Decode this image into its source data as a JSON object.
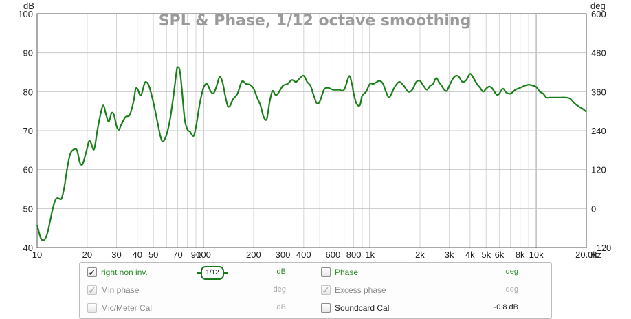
{
  "chart_data": {
    "type": "line",
    "title": "SPL & Phase, 1/12 octave smoothing",
    "x_scale": "log",
    "x_unit": "Hz",
    "xlim": [
      10,
      20000
    ],
    "x_ticks": [
      {
        "value": 10,
        "label": "10"
      },
      {
        "value": 20,
        "label": "20"
      },
      {
        "value": 30,
        "label": "30"
      },
      {
        "value": 40,
        "label": "40"
      },
      {
        "value": 50,
        "label": "50"
      },
      {
        "value": 70,
        "label": "70"
      },
      {
        "value": 90,
        "label": "90"
      },
      {
        "value": 100,
        "label": "100"
      },
      {
        "value": 200,
        "label": "200"
      },
      {
        "value": 300,
        "label": "300"
      },
      {
        "value": 400,
        "label": "400"
      },
      {
        "value": 600,
        "label": "600"
      },
      {
        "value": 800,
        "label": "800"
      },
      {
        "value": 1000,
        "label": "1k"
      },
      {
        "value": 2000,
        "label": "2k"
      },
      {
        "value": 3000,
        "label": "3k"
      },
      {
        "value": 4000,
        "label": "4k"
      },
      {
        "value": 5000,
        "label": "5k"
      },
      {
        "value": 6000,
        "label": "6k"
      },
      {
        "value": 8000,
        "label": "8k"
      },
      {
        "value": 10000,
        "label": "10k"
      },
      {
        "value": 20000,
        "label": "20.0k"
      }
    ],
    "y_unit": "dB",
    "ylim": [
      40,
      100
    ],
    "y_ticks": [
      40,
      50,
      60,
      70,
      80,
      90,
      100
    ],
    "y2_unit": "deg",
    "y2lim": [
      -120,
      600
    ],
    "y2_ticks": [
      -120,
      0,
      120,
      240,
      360,
      480,
      600
    ],
    "grid": true,
    "series": [
      {
        "name": "right non inv.",
        "color": "#1a7f1a",
        "points": [
          [
            10,
            45.8
          ],
          [
            10.5,
            42.5
          ],
          [
            11,
            41.9
          ],
          [
            11.5,
            43.5
          ],
          [
            12,
            47
          ],
          [
            12.5,
            50.5
          ],
          [
            13,
            52.5
          ],
          [
            13.5,
            52.6
          ],
          [
            14,
            52.5
          ],
          [
            14.5,
            55
          ],
          [
            15,
            59
          ],
          [
            15.5,
            62.5
          ],
          [
            16,
            64.5
          ],
          [
            17,
            65.3
          ],
          [
            17.5,
            64.5
          ],
          [
            18,
            62
          ],
          [
            18.5,
            61.2
          ],
          [
            19,
            62
          ],
          [
            20,
            65.5
          ],
          [
            20.5,
            67.3
          ],
          [
            21,
            67
          ],
          [
            22,
            65.2
          ],
          [
            23,
            70
          ],
          [
            24,
            74
          ],
          [
            25,
            76.5
          ],
          [
            26,
            74
          ],
          [
            27,
            72.3
          ],
          [
            28,
            74.5
          ],
          [
            29,
            74
          ],
          [
            30,
            71.2
          ],
          [
            31,
            70.2
          ],
          [
            32,
            71.5
          ],
          [
            34,
            73.5
          ],
          [
            36,
            74
          ],
          [
            38,
            77.5
          ],
          [
            39,
            80.5
          ],
          [
            40,
            80.8
          ],
          [
            42,
            79
          ],
          [
            44,
            81.8
          ],
          [
            45,
            82.5
          ],
          [
            47,
            81.5
          ],
          [
            50,
            77.2
          ],
          [
            53,
            72
          ],
          [
            55,
            68.7
          ],
          [
            57,
            67.2
          ],
          [
            60,
            69
          ],
          [
            63,
            73
          ],
          [
            66,
            79
          ],
          [
            69,
            85.5
          ],
          [
            70,
            86.3
          ],
          [
            72,
            85.5
          ],
          [
            74,
            81
          ],
          [
            77,
            73
          ],
          [
            80,
            70.3
          ],
          [
            83,
            69.7
          ],
          [
            86,
            68.7
          ],
          [
            88,
            69
          ],
          [
            91,
            72
          ],
          [
            95,
            77
          ],
          [
            100,
            81
          ],
          [
            105,
            82
          ],
          [
            110,
            80.2
          ],
          [
            115,
            79.6
          ],
          [
            120,
            81.5
          ],
          [
            125,
            83.8
          ],
          [
            130,
            82.5
          ],
          [
            135,
            79
          ],
          [
            140,
            76.3
          ],
          [
            145,
            76.5
          ],
          [
            150,
            78
          ],
          [
            160,
            79.5
          ],
          [
            170,
            82.6
          ],
          [
            180,
            82
          ],
          [
            190,
            81.8
          ],
          [
            200,
            80.8
          ],
          [
            210,
            78.5
          ],
          [
            220,
            76.5
          ],
          [
            230,
            73.5
          ],
          [
            240,
            73
          ],
          [
            250,
            77.5
          ],
          [
            260,
            80.2
          ],
          [
            270,
            79.2
          ],
          [
            280,
            79.5
          ],
          [
            300,
            81.5
          ],
          [
            320,
            82
          ],
          [
            340,
            83
          ],
          [
            360,
            82.5
          ],
          [
            380,
            83.5
          ],
          [
            400,
            84.1
          ],
          [
            420,
            82.5
          ],
          [
            440,
            81.5
          ],
          [
            460,
            79
          ],
          [
            480,
            77
          ],
          [
            500,
            77.5
          ],
          [
            530,
            80.5
          ],
          [
            560,
            81
          ],
          [
            600,
            80.5
          ],
          [
            650,
            80.5
          ],
          [
            700,
            80.5
          ],
          [
            750,
            84
          ],
          [
            780,
            82
          ],
          [
            800,
            79.5
          ],
          [
            830,
            77
          ],
          [
            870,
            76.5
          ],
          [
            900,
            79
          ],
          [
            950,
            80
          ],
          [
            1000,
            82
          ],
          [
            1050,
            82
          ],
          [
            1100,
            82.5
          ],
          [
            1150,
            82.8
          ],
          [
            1200,
            82
          ],
          [
            1250,
            80
          ],
          [
            1300,
            78.5
          ],
          [
            1350,
            79.5
          ],
          [
            1400,
            81
          ],
          [
            1500,
            82.5
          ],
          [
            1600,
            81.5
          ],
          [
            1700,
            80
          ],
          [
            1800,
            80.5
          ],
          [
            1900,
            82.5
          ],
          [
            2000,
            82.8
          ],
          [
            2100,
            81.5
          ],
          [
            2200,
            80.5
          ],
          [
            2300,
            81.5
          ],
          [
            2400,
            82
          ],
          [
            2500,
            83.5
          ],
          [
            2600,
            82.5
          ],
          [
            2700,
            81.5
          ],
          [
            2800,
            80.5
          ],
          [
            2900,
            80.2
          ],
          [
            3000,
            81.5
          ],
          [
            3200,
            83.7
          ],
          [
            3400,
            84
          ],
          [
            3600,
            82.5
          ],
          [
            3800,
            83
          ],
          [
            4000,
            84.6
          ],
          [
            4200,
            83.5
          ],
          [
            4400,
            82
          ],
          [
            4600,
            81
          ],
          [
            4800,
            80
          ],
          [
            5000,
            80.8
          ],
          [
            5200,
            81.3
          ],
          [
            5400,
            81
          ],
          [
            5600,
            80
          ],
          [
            5800,
            79.2
          ],
          [
            6000,
            79.5
          ],
          [
            6300,
            80.8
          ],
          [
            6600,
            79.8
          ],
          [
            7000,
            79.5
          ],
          [
            7500,
            80.5
          ],
          [
            8000,
            81
          ],
          [
            8500,
            81.5
          ],
          [
            9000,
            81.8
          ],
          [
            9500,
            81.6
          ],
          [
            10000,
            81.2
          ],
          [
            10500,
            80
          ],
          [
            11000,
            79.5
          ],
          [
            11500,
            78.5
          ],
          [
            12000,
            78.5
          ],
          [
            13000,
            78.5
          ],
          [
            14000,
            78.5
          ],
          [
            15000,
            78.5
          ],
          [
            16000,
            78.2
          ],
          [
            17000,
            77
          ],
          [
            18000,
            76.2
          ],
          [
            19000,
            75.6
          ],
          [
            20000,
            74.8
          ]
        ]
      }
    ]
  },
  "legend": {
    "rows": [
      {
        "checked": true,
        "enabled": true,
        "label": "right non inv.",
        "unit": "dB",
        "smoothing": "1/12",
        "right_label": "Phase",
        "right_checked": false,
        "right_enabled": true,
        "right_unit": "deg"
      },
      {
        "checked": true,
        "enabled": false,
        "label": "Min phase",
        "unit": "deg",
        "right_label": "Excess phase",
        "right_checked": true,
        "right_enabled": false,
        "right_unit": "deg"
      },
      {
        "checked": false,
        "enabled": false,
        "label": "Mic/Meter Cal",
        "unit": "dB",
        "right_label": "Soundcard Cal",
        "right_checked": false,
        "right_enabled": true,
        "right_unit": "-0.8 dB"
      }
    ]
  },
  "check_mark": "✓"
}
